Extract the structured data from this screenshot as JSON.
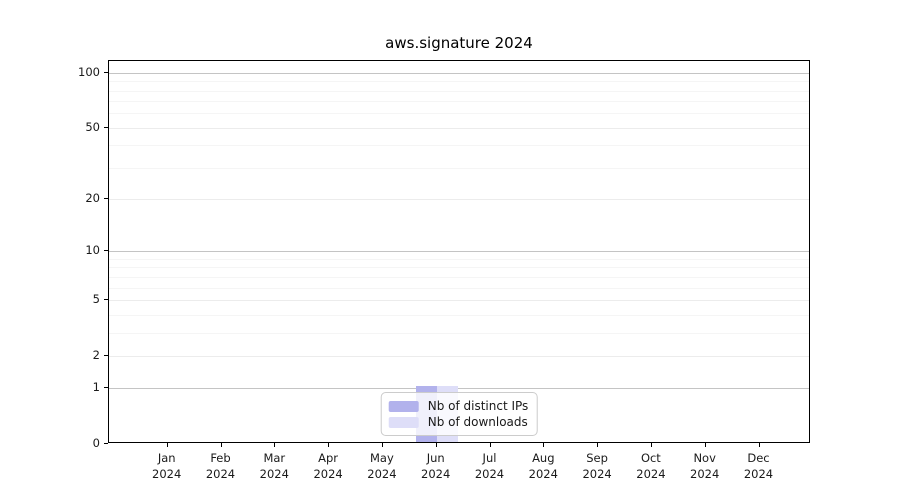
{
  "chart_data": {
    "type": "bar",
    "title": "aws.signature 2024",
    "x_ticks": [
      {
        "month": "Jan",
        "year": "2024"
      },
      {
        "month": "Feb",
        "year": "2024"
      },
      {
        "month": "Mar",
        "year": "2024"
      },
      {
        "month": "Apr",
        "year": "2024"
      },
      {
        "month": "May",
        "year": "2024"
      },
      {
        "month": "Jun",
        "year": "2024"
      },
      {
        "month": "Jul",
        "year": "2024"
      },
      {
        "month": "Aug",
        "year": "2024"
      },
      {
        "month": "Sep",
        "year": "2024"
      },
      {
        "month": "Oct",
        "year": "2024"
      },
      {
        "month": "Nov",
        "year": "2024"
      },
      {
        "month": "Dec",
        "year": "2024"
      }
    ],
    "series": [
      {
        "name": "Nb of distinct IPs",
        "color": "#b2b2ec",
        "values": [
          0,
          0,
          0,
          0,
          0,
          1,
          0,
          0,
          0,
          0,
          0,
          0
        ]
      },
      {
        "name": "Nb of downloads",
        "color": "#dedef8",
        "values": [
          0,
          0,
          0,
          0,
          0,
          1,
          0,
          0,
          0,
          0,
          0,
          0
        ]
      }
    ],
    "y_axis": {
      "scale": "log1p",
      "major_ticks": [
        0,
        1,
        2,
        5,
        10,
        20,
        50,
        100
      ],
      "minor_ticks": [
        3,
        4,
        6,
        7,
        8,
        9,
        30,
        40,
        60,
        70,
        80,
        90
      ],
      "decade_lines": [
        1,
        10,
        100
      ],
      "max": 116
    },
    "legend": {
      "position": "lower center"
    },
    "grid": true,
    "colors": {
      "decade_grid": "#c4c4c4",
      "major_grid": "#ececec",
      "minor_grid": "#f5f5f5",
      "spine": "#000000",
      "text": "#1a1a1a"
    }
  }
}
